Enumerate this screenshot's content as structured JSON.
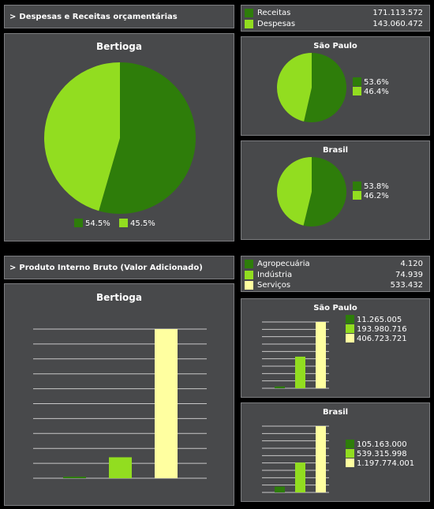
{
  "colors": {
    "dark_green": "#2e7d0a",
    "light_green": "#92dd20",
    "yellow": "#ffffa0",
    "panel": "#48494b",
    "border": "#7c7d80"
  },
  "section1": {
    "header": "Despesas e Receitas orçamentárias",
    "arrow": ">",
    "legend": [
      {
        "label": "Receitas",
        "value": "171.113.572",
        "color": "#2e7d0a"
      },
      {
        "label": "Despesas",
        "value": "143.060.472",
        "color": "#92dd20"
      }
    ]
  },
  "section2": {
    "header": "Produto Interno Bruto (Valor Adicionado)",
    "arrow": ">",
    "legend": [
      {
        "label": "Agropecuária",
        "value": "4.120",
        "color": "#2e7d0a"
      },
      {
        "label": "Indústria",
        "value": "74.939",
        "color": "#92dd20"
      },
      {
        "label": "Serviços",
        "value": "533.432",
        "color": "#ffffa0"
      }
    ]
  },
  "chart_data": [
    {
      "type": "pie",
      "title": "Bertioga",
      "labels": [
        "54.5%",
        "45.5%"
      ],
      "values": [
        54.5,
        45.5
      ],
      "colors": [
        "#2e7d0a",
        "#92dd20"
      ]
    },
    {
      "type": "pie",
      "title": "São Paulo",
      "labels": [
        "53.6%",
        "46.4%"
      ],
      "values": [
        53.6,
        46.4
      ],
      "colors": [
        "#2e7d0a",
        "#92dd20"
      ]
    },
    {
      "type": "pie",
      "title": "Brasil",
      "labels": [
        "53.8%",
        "46.2%"
      ],
      "values": [
        53.8,
        46.2
      ],
      "colors": [
        "#2e7d0a",
        "#92dd20"
      ]
    },
    {
      "type": "bar",
      "title": "Bertioga",
      "categories": [
        "Agropecuária",
        "Indústria",
        "Serviços"
      ],
      "values": [
        4120,
        74939,
        533432
      ],
      "colors": [
        "#2e7d0a",
        "#92dd20",
        "#ffffa0"
      ],
      "grid": true,
      "ylim": [
        0,
        533432
      ]
    },
    {
      "type": "bar",
      "title": "São Paulo",
      "categories": [
        "Agropecuária",
        "Indústria",
        "Serviços"
      ],
      "values": [
        11265005,
        193980716,
        406723721
      ],
      "labels": [
        "11.265.005",
        "193.980.716",
        "406.723.721"
      ],
      "colors": [
        "#2e7d0a",
        "#92dd20",
        "#ffffa0"
      ],
      "grid": true,
      "ylim": [
        0,
        406723721
      ]
    },
    {
      "type": "bar",
      "title": "Brasil",
      "categories": [
        "Agropecuária",
        "Indústria",
        "Serviços"
      ],
      "values": [
        105163000,
        539315998,
        1197774001
      ],
      "labels": [
        "105.163.000",
        "539.315.998",
        "1.197.774.001"
      ],
      "colors": [
        "#2e7d0a",
        "#92dd20",
        "#ffffa0"
      ],
      "grid": true,
      "ylim": [
        0,
        1197774001
      ]
    }
  ]
}
